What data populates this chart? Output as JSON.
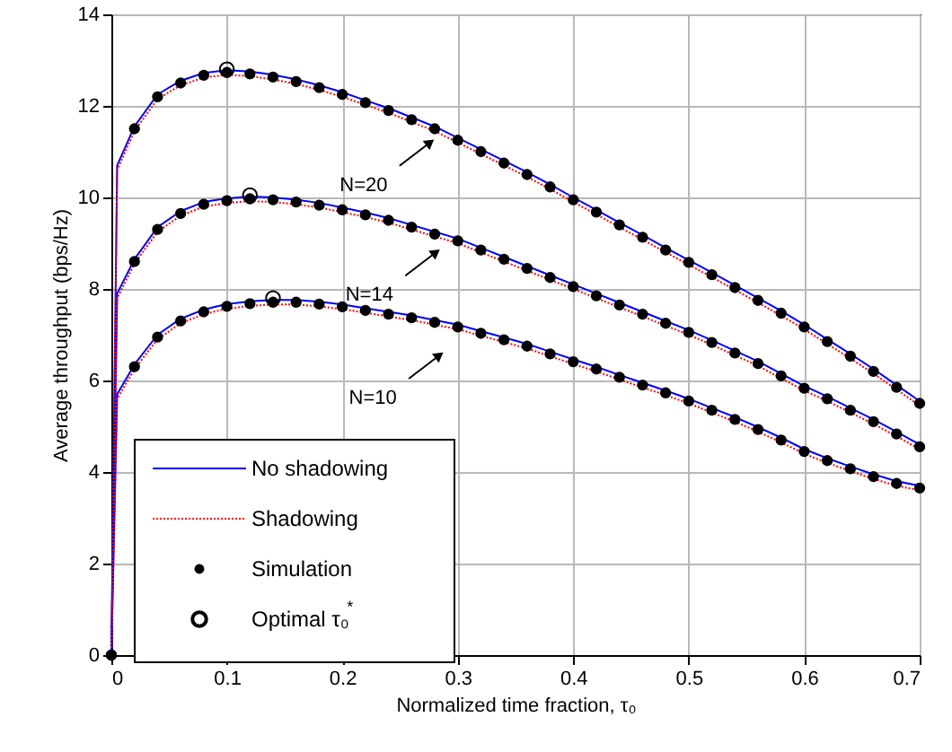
{
  "chart_data": {
    "type": "line",
    "xlabel": "Normalized time fraction, τ₀",
    "ylabel": "Average throughput (bps/Hz)",
    "xlim": [
      0,
      0.7
    ],
    "xticks": [
      0,
      0.1,
      0.2,
      0.3,
      0.4,
      0.5,
      0.6,
      0.7
    ],
    "ylim": [
      0,
      14
    ],
    "yticks": [
      0,
      2,
      4,
      6,
      8,
      10,
      12,
      14
    ],
    "grid": true,
    "legend": "bottom left",
    "series": [
      {
        "name": "No shadowing",
        "type": "line",
        "color": "#0000ff",
        "line_style": "solid",
        "x": [
          0,
          0.005,
          0.02,
          0.04,
          0.06,
          0.08,
          0.1,
          0.12,
          0.14,
          0.16,
          0.18,
          0.2,
          0.22,
          0.24,
          0.26,
          0.28,
          0.3,
          0.32,
          0.34,
          0.36,
          0.38,
          0.4,
          0.42,
          0.44,
          0.46,
          0.48,
          0.5,
          0.52,
          0.54,
          0.56,
          0.58,
          0.6,
          0.62,
          0.64,
          0.66,
          0.68,
          0.7
        ],
        "values": [
          0,
          10.7,
          11.55,
          12.25,
          12.55,
          12.72,
          12.78,
          12.75,
          12.68,
          12.58,
          12.45,
          12.3,
          12.12,
          11.95,
          11.75,
          11.55,
          11.3,
          11.05,
          10.8,
          10.55,
          10.28,
          10.0,
          9.73,
          9.45,
          9.18,
          8.9,
          8.63,
          8.36,
          8.08,
          7.8,
          7.52,
          7.22,
          6.9,
          6.58,
          6.25,
          5.9,
          5.55
        ]
      },
      {
        "name": "Shadowing",
        "type": "line",
        "color": "#ff0000",
        "line_style": "dotted",
        "x": [
          0,
          0.005,
          0.02,
          0.04,
          0.06,
          0.08,
          0.1,
          0.12,
          0.14,
          0.16,
          0.18,
          0.2,
          0.22,
          0.24,
          0.26,
          0.28,
          0.3,
          0.32,
          0.34,
          0.36,
          0.38,
          0.4,
          0.42,
          0.44,
          0.46,
          0.48,
          0.5,
          0.52,
          0.54,
          0.56,
          0.58,
          0.6,
          0.62,
          0.64,
          0.66,
          0.68,
          0.7
        ],
        "values": [
          0,
          10.6,
          11.45,
          12.15,
          12.45,
          12.62,
          12.68,
          12.65,
          12.58,
          12.48,
          12.35,
          12.2,
          12.02,
          11.85,
          11.65,
          11.45,
          11.2,
          10.95,
          10.7,
          10.45,
          10.18,
          9.9,
          9.63,
          9.35,
          9.08,
          8.8,
          8.53,
          8.26,
          7.98,
          7.7,
          7.42,
          7.12,
          6.8,
          6.48,
          6.15,
          5.8,
          5.45
        ]
      },
      {
        "type": "line",
        "color": "#0000ff",
        "line_style": "solid",
        "x": [
          0,
          0.005,
          0.02,
          0.04,
          0.06,
          0.08,
          0.1,
          0.12,
          0.14,
          0.16,
          0.18,
          0.2,
          0.22,
          0.24,
          0.26,
          0.28,
          0.3,
          0.32,
          0.34,
          0.36,
          0.38,
          0.4,
          0.42,
          0.44,
          0.46,
          0.48,
          0.5,
          0.52,
          0.54,
          0.56,
          0.58,
          0.6,
          0.62,
          0.64,
          0.66,
          0.68,
          0.7
        ],
        "values": [
          0,
          7.9,
          8.65,
          9.35,
          9.7,
          9.9,
          9.98,
          10.02,
          10.0,
          9.95,
          9.88,
          9.78,
          9.67,
          9.55,
          9.4,
          9.25,
          9.1,
          8.9,
          8.7,
          8.5,
          8.3,
          8.1,
          7.9,
          7.7,
          7.5,
          7.3,
          7.1,
          6.88,
          6.65,
          6.42,
          6.15,
          5.88,
          5.65,
          5.4,
          5.15,
          4.88,
          4.6
        ]
      },
      {
        "type": "line",
        "color": "#ff0000",
        "line_style": "dotted",
        "x": [
          0,
          0.005,
          0.02,
          0.04,
          0.06,
          0.08,
          0.1,
          0.12,
          0.14,
          0.16,
          0.18,
          0.2,
          0.22,
          0.24,
          0.26,
          0.28,
          0.3,
          0.32,
          0.34,
          0.36,
          0.38,
          0.4,
          0.42,
          0.44,
          0.46,
          0.48,
          0.5,
          0.52,
          0.54,
          0.56,
          0.58,
          0.6,
          0.62,
          0.64,
          0.66,
          0.68,
          0.7
        ],
        "values": [
          0,
          7.8,
          8.55,
          9.25,
          9.6,
          9.8,
          9.88,
          9.92,
          9.9,
          9.85,
          9.78,
          9.68,
          9.57,
          9.45,
          9.3,
          9.15,
          9.0,
          8.8,
          8.6,
          8.4,
          8.2,
          8.0,
          7.8,
          7.6,
          7.4,
          7.2,
          7.0,
          6.78,
          6.55,
          6.32,
          6.05,
          5.78,
          5.55,
          5.3,
          5.05,
          4.78,
          4.5
        ]
      },
      {
        "type": "line",
        "color": "#0000ff",
        "line_style": "solid",
        "x": [
          0,
          0.005,
          0.02,
          0.04,
          0.06,
          0.08,
          0.1,
          0.12,
          0.14,
          0.16,
          0.18,
          0.2,
          0.22,
          0.24,
          0.26,
          0.28,
          0.3,
          0.32,
          0.34,
          0.36,
          0.38,
          0.4,
          0.42,
          0.44,
          0.46,
          0.48,
          0.5,
          0.52,
          0.54,
          0.56,
          0.58,
          0.6,
          0.62,
          0.64,
          0.66,
          0.68,
          0.7
        ],
        "values": [
          0,
          5.7,
          6.35,
          7.0,
          7.35,
          7.55,
          7.67,
          7.73,
          7.76,
          7.76,
          7.72,
          7.66,
          7.58,
          7.5,
          7.42,
          7.32,
          7.22,
          7.08,
          6.94,
          6.8,
          6.63,
          6.46,
          6.3,
          6.12,
          5.95,
          5.78,
          5.6,
          5.4,
          5.2,
          4.98,
          4.75,
          4.5,
          4.3,
          4.12,
          3.95,
          3.8,
          3.7
        ]
      },
      {
        "type": "line",
        "color": "#ff0000",
        "line_style": "dotted",
        "x": [
          0,
          0.005,
          0.02,
          0.04,
          0.06,
          0.08,
          0.1,
          0.12,
          0.14,
          0.16,
          0.18,
          0.2,
          0.22,
          0.24,
          0.26,
          0.28,
          0.3,
          0.32,
          0.34,
          0.36,
          0.38,
          0.4,
          0.42,
          0.44,
          0.46,
          0.48,
          0.5,
          0.52,
          0.54,
          0.56,
          0.58,
          0.6,
          0.62,
          0.64,
          0.66,
          0.68,
          0.7
        ],
        "values": [
          0,
          5.6,
          6.25,
          6.9,
          7.25,
          7.45,
          7.57,
          7.63,
          7.66,
          7.66,
          7.62,
          7.56,
          7.48,
          7.4,
          7.32,
          7.22,
          7.12,
          6.98,
          6.84,
          6.7,
          6.53,
          6.36,
          6.2,
          6.02,
          5.85,
          5.68,
          5.5,
          5.3,
          5.1,
          4.88,
          4.65,
          4.4,
          4.2,
          4.02,
          3.85,
          3.7,
          3.6
        ]
      },
      {
        "name": "Simulation",
        "type": "scatter",
        "color": "#000000",
        "marker": "circle",
        "x": [
          0,
          0.02,
          0.04,
          0.06,
          0.08,
          0.1,
          0.12,
          0.14,
          0.16,
          0.18,
          0.2,
          0.22,
          0.24,
          0.26,
          0.28,
          0.3,
          0.32,
          0.34,
          0.36,
          0.38,
          0.4,
          0.42,
          0.44,
          0.46,
          0.48,
          0.5,
          0.52,
          0.54,
          0.56,
          0.58,
          0.6,
          0.62,
          0.64,
          0.66,
          0.68,
          0.7,
          0,
          0.02,
          0.04,
          0.06,
          0.08,
          0.1,
          0.12,
          0.14,
          0.16,
          0.18,
          0.2,
          0.22,
          0.24,
          0.26,
          0.28,
          0.3,
          0.32,
          0.34,
          0.36,
          0.38,
          0.4,
          0.42,
          0.44,
          0.46,
          0.48,
          0.5,
          0.52,
          0.54,
          0.56,
          0.58,
          0.6,
          0.62,
          0.64,
          0.66,
          0.68,
          0.7,
          0,
          0.02,
          0.04,
          0.06,
          0.08,
          0.1,
          0.12,
          0.14,
          0.16,
          0.18,
          0.2,
          0.22,
          0.24,
          0.26,
          0.28,
          0.3,
          0.32,
          0.34,
          0.36,
          0.38,
          0.4,
          0.42,
          0.44,
          0.46,
          0.48,
          0.5,
          0.52,
          0.54,
          0.56,
          0.58,
          0.6,
          0.62,
          0.64,
          0.66,
          0.68,
          0.7
        ],
        "values": [
          0,
          11.5,
          12.2,
          12.5,
          12.67,
          12.73,
          12.7,
          12.63,
          12.53,
          12.4,
          12.25,
          12.07,
          11.9,
          11.7,
          11.5,
          11.25,
          11.0,
          10.75,
          10.5,
          10.23,
          9.95,
          9.68,
          9.4,
          9.13,
          8.85,
          8.58,
          8.31,
          8.03,
          7.75,
          7.47,
          7.17,
          6.85,
          6.53,
          6.2,
          5.85,
          5.5,
          0,
          8.6,
          9.3,
          9.65,
          9.85,
          9.93,
          9.97,
          9.95,
          9.9,
          9.83,
          9.73,
          9.62,
          9.5,
          9.35,
          9.2,
          9.05,
          8.85,
          8.65,
          8.45,
          8.25,
          8.05,
          7.85,
          7.65,
          7.45,
          7.25,
          7.05,
          6.83,
          6.6,
          6.37,
          6.1,
          5.83,
          5.6,
          5.35,
          5.1,
          4.83,
          4.55,
          0,
          6.3,
          6.95,
          7.3,
          7.5,
          7.62,
          7.68,
          7.71,
          7.71,
          7.67,
          7.61,
          7.53,
          7.45,
          7.37,
          7.27,
          7.17,
          7.03,
          6.89,
          6.75,
          6.58,
          6.41,
          6.25,
          6.07,
          5.9,
          5.73,
          5.55,
          5.35,
          5.15,
          4.93,
          4.7,
          4.45,
          4.25,
          4.07,
          3.9,
          3.75,
          3.65
        ]
      },
      {
        "name": "Optimal τ₀$^{*}$",
        "type": "scatter",
        "color": "#000000",
        "marker": "circle",
        "x": [
          0.1,
          0.12,
          0.14
        ],
        "values": [
          12.8,
          10.05,
          7.8
        ]
      }
    ],
    "annotations": [
      {
        "text": "N=20",
        "x": 0.276,
        "y": 11.2
      },
      {
        "text": "N=14",
        "x": 0.281,
        "y": 8.8
      },
      {
        "text": "N=10",
        "x": 0.284,
        "y": 6.55
      }
    ]
  }
}
